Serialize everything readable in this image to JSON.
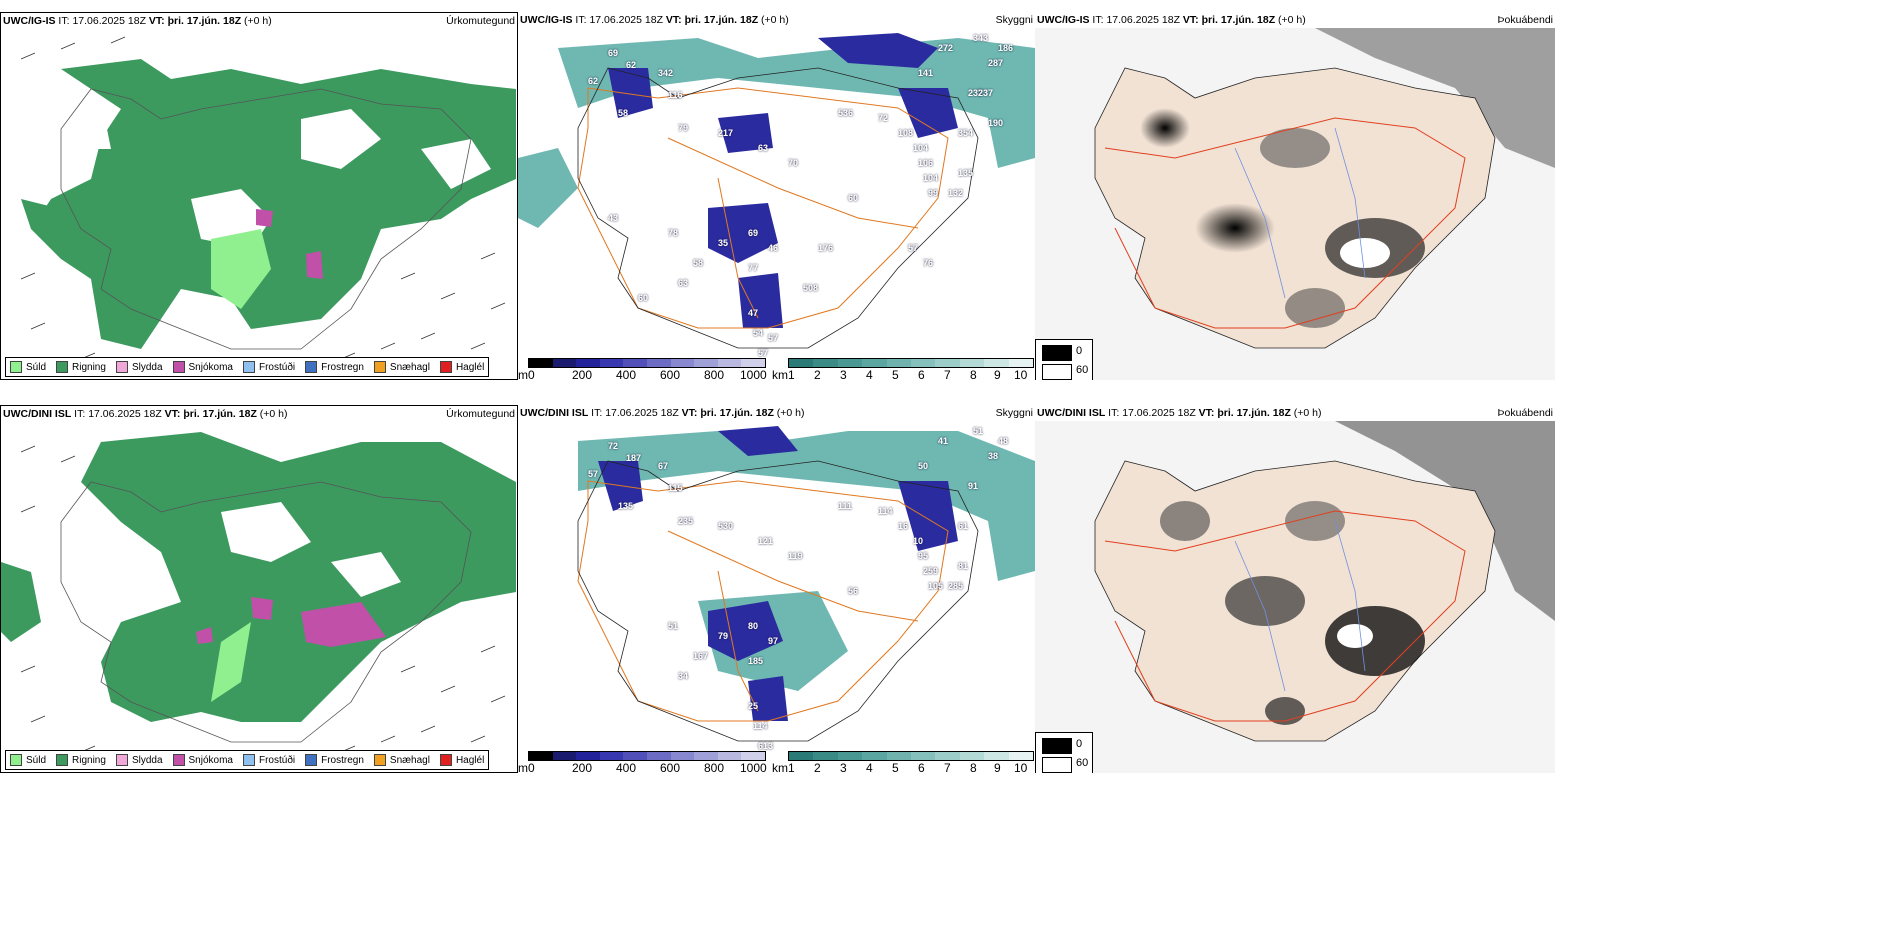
{
  "rows": [
    {
      "model": "UWC/IG-IS",
      "it_label": "IT:",
      "it_value": "17.06.2025 18Z",
      "vt_label": "VT:",
      "vt_value": "þri. 17.jún. 18Z",
      "lead": "(+0 h)",
      "panels": {
        "precip": {
          "title": "Úrkomutegund"
        },
        "cloud": {
          "title": "Skyggni"
        },
        "fog": {
          "title": "Þokuábendi"
        }
      },
      "cloud_labels": [
        "69",
        "62",
        "62",
        "342",
        "116",
        "58",
        "79",
        "217",
        "63",
        "70",
        "536",
        "72",
        "108",
        "104",
        "106",
        "104",
        "99",
        "237",
        "354",
        "287",
        "186",
        "343",
        "272",
        "141",
        "135",
        "132",
        "60",
        "78",
        "35",
        "69",
        "46",
        "77",
        "58",
        "63",
        "47",
        "54",
        "57",
        "57",
        "60",
        "176",
        "508",
        "57",
        "76",
        "190",
        "237",
        "43"
      ]
    },
    {
      "model": "UWC/DINI ISL",
      "it_label": "IT:",
      "it_value": "17.06.2025 18Z",
      "vt_label": "VT:",
      "vt_value": "þri. 17.jún. 18Z",
      "lead": "(+0 h)",
      "panels": {
        "precip": {
          "title": "Úrkomutegund"
        },
        "cloud": {
          "title": "Skyggni"
        },
        "fog": {
          "title": "Þokuábendi"
        }
      },
      "cloud_labels": [
        "72",
        "187",
        "57",
        "67",
        "115",
        "135",
        "235",
        "530",
        "121",
        "119",
        "111",
        "114",
        "16",
        "10",
        "95",
        "259",
        "105",
        "91",
        "61",
        "38",
        "48",
        "51",
        "41",
        "50",
        "81",
        "285",
        "56",
        "51",
        "79",
        "80",
        "97",
        "185",
        "167",
        "34",
        "25",
        "114",
        "613"
      ]
    }
  ],
  "precip_legend": [
    {
      "label": "Súld",
      "color": "#90f090"
    },
    {
      "label": "Rigning",
      "color": "#3c9a5f"
    },
    {
      "label": "Slydda",
      "color": "#f0a8d8"
    },
    {
      "label": "Snjókoma",
      "color": "#c050a8"
    },
    {
      "label": "Frostúði",
      "color": "#90c0f0"
    },
    {
      "label": "Frostregn",
      "color": "#4070c0"
    },
    {
      "label": "Snæhagl",
      "color": "#f0a020"
    },
    {
      "label": "Haglél",
      "color": "#e02020"
    }
  ],
  "height_scale": {
    "unit": "m",
    "ticks": [
      "0",
      "200",
      "400",
      "600",
      "800",
      "1000"
    ],
    "colors": [
      "#000000",
      "#1a1a6e",
      "#22229a",
      "#3838b0",
      "#5050b8",
      "#6c6cc4",
      "#8888d0",
      "#a0a0d8",
      "#b8b8e0",
      "#d0d0ea"
    ]
  },
  "visibility_scale": {
    "unit": "km",
    "ticks": [
      "1",
      "2",
      "3",
      "4",
      "5",
      "6",
      "7",
      "8",
      "9",
      "10"
    ],
    "colors": [
      "#2a7a78",
      "#3a8a86",
      "#4a9894",
      "#5ca6a2",
      "#70b2ae",
      "#86c0bc",
      "#9ccdc9",
      "#b4dad6",
      "#cce7e4",
      "#e6f3f2"
    ]
  },
  "fog_legend": {
    "high": {
      "value": "0",
      "color": "#000000"
    },
    "low": {
      "value": "60",
      "color": "#ffffff"
    }
  }
}
